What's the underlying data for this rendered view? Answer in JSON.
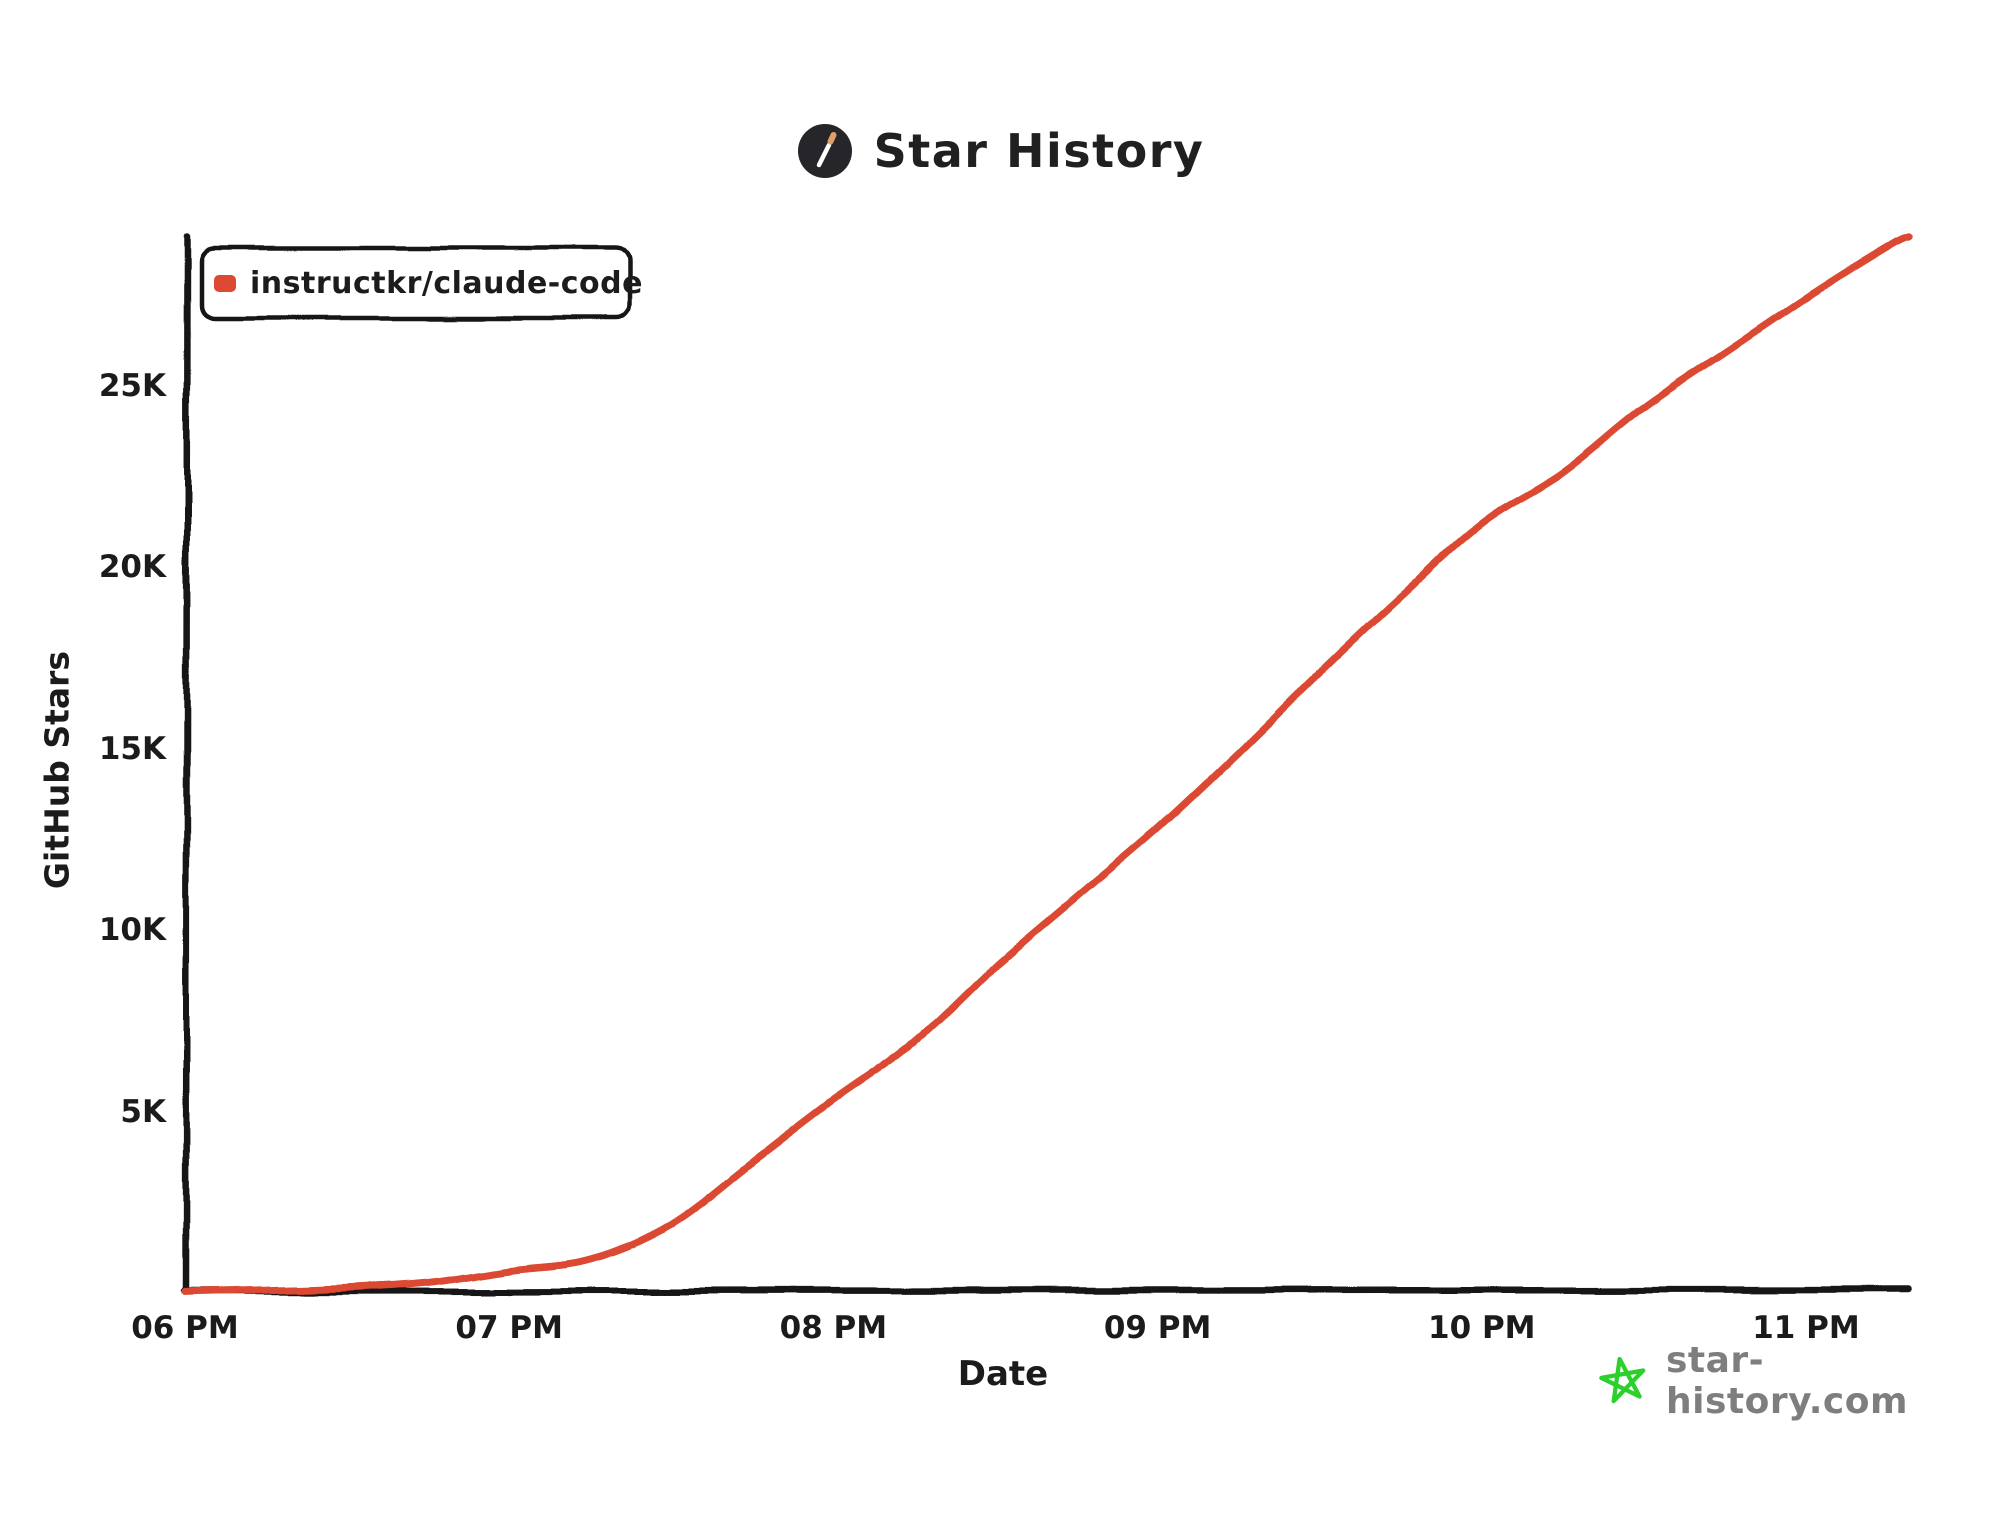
{
  "header": {
    "title": "Star History",
    "logo_icon": "wand-in-dark-circle"
  },
  "chart_data": {
    "type": "line",
    "title": "Star History",
    "xlabel": "Date",
    "ylabel": "GitHub Stars",
    "grid": false,
    "legend_position": "top-left",
    "x_axis": {
      "tick_labels": [
        "06 PM",
        "07 PM",
        "08 PM",
        "09 PM",
        "10 PM",
        "11 PM"
      ]
    },
    "y_axis": {
      "tick_labels": [
        "5K",
        "10K",
        "15K",
        "20K",
        "25K"
      ],
      "tick_values": [
        5000,
        10000,
        15000,
        20000,
        25000
      ],
      "range": [
        0,
        29200
      ]
    },
    "series": [
      {
        "name": "instructkr/claude-code",
        "color": "#dc4a32",
        "points": [
          [
            "18:00",
            30
          ],
          [
            "18:15",
            90
          ],
          [
            "18:30",
            160
          ],
          [
            "18:45",
            300
          ],
          [
            "19:00",
            650
          ],
          [
            "19:15",
            950
          ],
          [
            "19:30",
            1900
          ],
          [
            "19:45",
            3600
          ],
          [
            "20:00",
            5300
          ],
          [
            "20:15",
            6900
          ],
          [
            "20:30",
            9000
          ],
          [
            "20:45",
            10900
          ],
          [
            "21:00",
            12800
          ],
          [
            "21:15",
            14900
          ],
          [
            "21:30",
            17100
          ],
          [
            "21:45",
            19200
          ],
          [
            "22:00",
            21200
          ],
          [
            "22:15",
            22600
          ],
          [
            "22:30",
            24400
          ],
          [
            "22:45",
            25900
          ],
          [
            "23:00",
            27400
          ],
          [
            "23:15",
            28800
          ],
          [
            "23:19",
            29100
          ]
        ]
      }
    ]
  },
  "watermark": {
    "text": "star-history.com",
    "icon": "green-star",
    "icon_color": "#2bd02b"
  }
}
